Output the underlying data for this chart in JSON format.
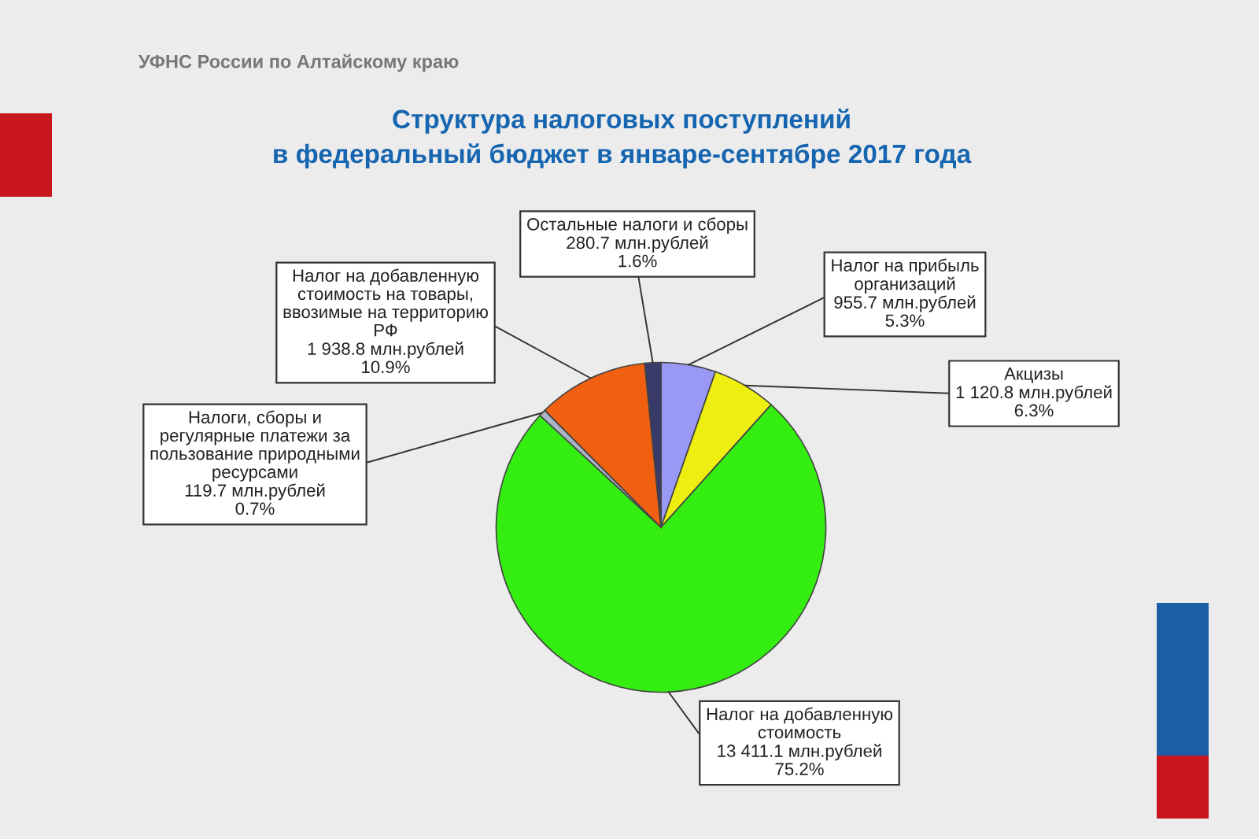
{
  "chart_data": {
    "type": "pie",
    "title": "Структура налоговых поступлений\nв федеральный бюджет в январе-сентябре 2017 года",
    "categories": [
      "Налог на прибыль\nорганизаций",
      "Акцизы",
      "Налог на добавленную\nстоимость",
      "Налоги, сборы и\nрегулярные платежи за\nпользование природными\nресурсами",
      "Налог на добавленную\nстоимость на товары,\nввозимые на территорию\nРФ",
      "Остальные налоги и сборы"
    ],
    "values": [
      955.7,
      1120.8,
      13411.1,
      119.7,
      1938.8,
      280.7
    ],
    "colors": [
      "#9999f5",
      "#eeee10",
      "#33ee10",
      "#a9b4c4",
      "#f06010",
      "#3a3a6a"
    ],
    "value_labels": [
      "955.7 млн.рублей\n5.3%",
      "1 120.8 млн.рублей\n6.3%",
      "13 411.1 млн.рублей\n75.2%",
      "119.7 млн.рублей\n0.7%",
      "1 938.8 млн.рублей\n10.9%",
      "280.7 млн.рублей\n1.6%"
    ],
    "annotations": [
      "УФНС России по Алтайскому краю"
    ]
  }
}
